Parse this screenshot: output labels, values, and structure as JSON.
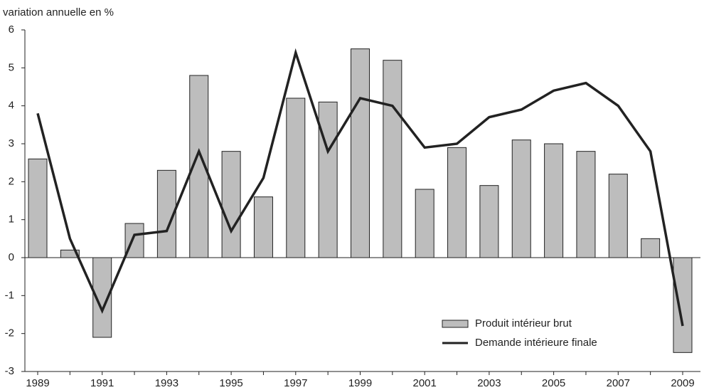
{
  "chart_data": {
    "type": "bar-line",
    "y_axis_label": "variation annuelle en %",
    "categories": [
      "1989",
      null,
      "1991",
      null,
      "1993",
      null,
      "1995",
      null,
      "1997",
      null,
      "1999",
      null,
      "2001",
      null,
      "2003",
      null,
      "2005",
      null,
      "2007",
      null,
      "2009"
    ],
    "series": [
      {
        "name": "Produit intérieur brut",
        "type": "bar",
        "color": "#bdbdbd",
        "values": [
          2.6,
          0.2,
          -2.1,
          0.9,
          2.3,
          4.8,
          2.8,
          1.6,
          4.2,
          4.1,
          5.5,
          5.2,
          1.8,
          2.9,
          1.9,
          3.1,
          3.0,
          2.8,
          2.2,
          0.5,
          -2.5
        ]
      },
      {
        "name": "Demande intérieure finale",
        "type": "line",
        "color": "#222222",
        "values": [
          3.8,
          0.5,
          -1.4,
          0.6,
          0.7,
          2.8,
          0.7,
          2.1,
          5.4,
          2.8,
          4.2,
          4.0,
          2.9,
          3.0,
          3.7,
          3.9,
          4.4,
          4.6,
          4.0,
          2.8,
          -1.8
        ]
      }
    ],
    "ylim": [
      -3,
      6
    ],
    "yticks": [
      -3,
      -2,
      -1,
      0,
      1,
      2,
      3,
      4,
      5,
      6
    ],
    "legend": "lower right"
  }
}
